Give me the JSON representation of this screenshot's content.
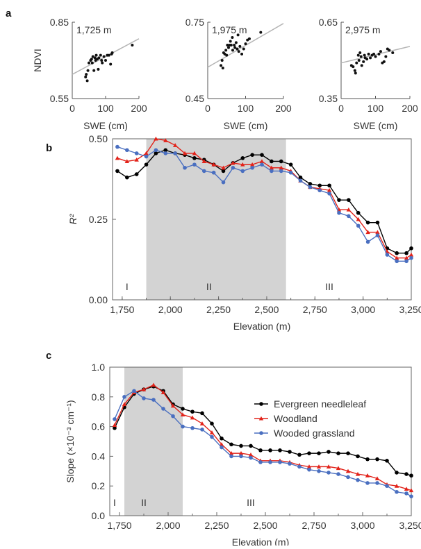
{
  "panel_labels": [
    "a",
    "b",
    "c"
  ],
  "chart_data": [
    {
      "type": "scatter",
      "annotation": "1,725 m",
      "ylabel": "NDVI",
      "xlabel": "SWE (cm)",
      "xlim": [
        0,
        200
      ],
      "ylim": [
        0.55,
        0.85
      ],
      "xticks": [
        "0",
        "100",
        "200"
      ],
      "yticks": [
        "0.55",
        "0.85"
      ],
      "grid": false,
      "points": [
        [
          40,
          0.635
        ],
        [
          42,
          0.645
        ],
        [
          45,
          0.62
        ],
        [
          47,
          0.66
        ],
        [
          50,
          0.69
        ],
        [
          55,
          0.7
        ],
        [
          58,
          0.705
        ],
        [
          60,
          0.69
        ],
        [
          62,
          0.715
        ],
        [
          65,
          0.66
        ],
        [
          68,
          0.71
        ],
        [
          70,
          0.7
        ],
        [
          72,
          0.72
        ],
        [
          75,
          0.705
        ],
        [
          78,
          0.665
        ],
        [
          80,
          0.71
        ],
        [
          85,
          0.72
        ],
        [
          88,
          0.7
        ],
        [
          90,
          0.69
        ],
        [
          95,
          0.715
        ],
        [
          100,
          0.7
        ],
        [
          105,
          0.72
        ],
        [
          110,
          0.72
        ],
        [
          115,
          0.685
        ],
        [
          118,
          0.725
        ],
        [
          120,
          0.73
        ],
        [
          180,
          0.76
        ]
      ],
      "fit": [
        [
          0,
          0.645
        ],
        [
          200,
          0.785
        ]
      ]
    },
    {
      "type": "scatter",
      "annotation": "1,975 m",
      "ylabel": "",
      "xlabel": "SWE (cm)",
      "xlim": [
        0,
        200
      ],
      "ylim": [
        0.45,
        0.75
      ],
      "xticks": [
        "0",
        "100",
        "200"
      ],
      "yticks": [
        "0.45",
        "0.75"
      ],
      "grid": false,
      "points": [
        [
          35,
          0.58
        ],
        [
          38,
          0.6
        ],
        [
          40,
          0.57
        ],
        [
          42,
          0.63
        ],
        [
          45,
          0.625
        ],
        [
          48,
          0.64
        ],
        [
          50,
          0.62
        ],
        [
          52,
          0.66
        ],
        [
          55,
          0.65
        ],
        [
          58,
          0.66
        ],
        [
          60,
          0.675
        ],
        [
          62,
          0.66
        ],
        [
          65,
          0.69
        ],
        [
          66,
          0.64
        ],
        [
          70,
          0.66
        ],
        [
          72,
          0.65
        ],
        [
          75,
          0.67
        ],
        [
          78,
          0.645
        ],
        [
          80,
          0.7
        ],
        [
          82,
          0.635
        ],
        [
          85,
          0.655
        ],
        [
          90,
          0.625
        ],
        [
          95,
          0.645
        ],
        [
          100,
          0.665
        ],
        [
          105,
          0.68
        ],
        [
          110,
          0.685
        ],
        [
          140,
          0.71
        ]
      ],
      "fit": [
        [
          0,
          0.573
        ],
        [
          200,
          0.745
        ]
      ]
    },
    {
      "type": "scatter",
      "annotation": "2,975 m",
      "ylabel": "",
      "xlabel": "SWE (cm)",
      "xlim": [
        0,
        200
      ],
      "ylim": [
        0.35,
        0.65
      ],
      "xticks": [
        "0",
        "100",
        "200"
      ],
      "yticks": [
        "0.35",
        "0.65"
      ],
      "grid": false,
      "points": [
        [
          30,
          0.48
        ],
        [
          35,
          0.475
        ],
        [
          40,
          0.46
        ],
        [
          42,
          0.45
        ],
        [
          45,
          0.49
        ],
        [
          50,
          0.52
        ],
        [
          52,
          0.5
        ],
        [
          55,
          0.53
        ],
        [
          58,
          0.515
        ],
        [
          60,
          0.48
        ],
        [
          65,
          0.495
        ],
        [
          68,
          0.52
        ],
        [
          70,
          0.51
        ],
        [
          75,
          0.505
        ],
        [
          80,
          0.525
        ],
        [
          85,
          0.51
        ],
        [
          90,
          0.52
        ],
        [
          95,
          0.525
        ],
        [
          100,
          0.515
        ],
        [
          110,
          0.525
        ],
        [
          115,
          0.535
        ],
        [
          120,
          0.49
        ],
        [
          125,
          0.495
        ],
        [
          130,
          0.515
        ],
        [
          135,
          0.545
        ],
        [
          140,
          0.54
        ],
        [
          150,
          0.53
        ]
      ],
      "fit": [
        [
          0,
          0.49
        ],
        [
          200,
          0.555
        ]
      ]
    },
    {
      "type": "line",
      "ylabel": "R²",
      "xlabel": "Elevation (m)",
      "xlim": [
        1700,
        3250
      ],
      "ylim": [
        0,
        0.5
      ],
      "xticks": [
        "1,750",
        "2,000",
        "2,250",
        "2,500",
        "2,750",
        "3,000",
        "3,250"
      ],
      "yticks": [
        "0.00",
        "0.25",
        "0.50"
      ],
      "grid": false,
      "shaded_region": [
        1875,
        2600
      ],
      "zone_labels": [
        {
          "text": "I",
          "x": 1775
        },
        {
          "text": "II",
          "x": 2200
        },
        {
          "text": "III",
          "x": 2825
        }
      ],
      "legend": "none",
      "x": [
        1725,
        1775,
        1825,
        1875,
        1925,
        1975,
        2025,
        2075,
        2125,
        2175,
        2225,
        2275,
        2325,
        2375,
        2425,
        2475,
        2525,
        2575,
        2625,
        2675,
        2725,
        2775,
        2825,
        2875,
        2925,
        2975,
        3025,
        3075,
        3125,
        3175,
        3225,
        3250
      ],
      "series": [
        {
          "color": "#000000",
          "marker": "circle",
          "values": [
            0.4,
            0.38,
            0.39,
            0.42,
            0.455,
            0.465,
            0.455,
            0.45,
            0.44,
            0.435,
            0.42,
            0.4,
            0.425,
            0.44,
            0.45,
            0.45,
            0.43,
            0.43,
            0.42,
            0.38,
            0.36,
            0.355,
            0.355,
            0.31,
            0.31,
            0.27,
            0.24,
            0.24,
            0.16,
            0.145,
            0.145,
            0.16
          ]
        },
        {
          "color": "#e2231a",
          "marker": "triangle",
          "values": [
            0.44,
            0.43,
            0.435,
            0.455,
            0.5,
            0.495,
            0.48,
            0.455,
            0.455,
            0.43,
            0.42,
            0.41,
            0.425,
            0.42,
            0.42,
            0.43,
            0.41,
            0.41,
            0.4,
            0.37,
            0.35,
            0.345,
            0.34,
            0.28,
            0.28,
            0.25,
            0.21,
            0.21,
            0.15,
            0.13,
            0.13,
            0.14
          ]
        },
        {
          "color": "#4a6fc0",
          "marker": "circle",
          "values": [
            0.475,
            0.465,
            0.455,
            0.445,
            0.465,
            0.455,
            0.455,
            0.41,
            0.42,
            0.4,
            0.395,
            0.365,
            0.41,
            0.4,
            0.41,
            0.42,
            0.4,
            0.4,
            0.395,
            0.37,
            0.35,
            0.34,
            0.33,
            0.27,
            0.26,
            0.23,
            0.18,
            0.2,
            0.14,
            0.12,
            0.12,
            0.13
          ]
        }
      ]
    },
    {
      "type": "line",
      "ylabel": "Slope (×10⁻³ cm⁻¹)",
      "xlabel": "Elevation (m)",
      "xlim": [
        1700,
        3250
      ],
      "ylim": [
        0,
        1.0
      ],
      "xticks": [
        "1,750",
        "2,000",
        "2,250",
        "2,500",
        "2,750",
        "3,000",
        "3,250"
      ],
      "yticks": [
        "0.0",
        "0.2",
        "0.4",
        "0.6",
        "0.8",
        "1.0"
      ],
      "grid": false,
      "shaded_region": [
        1775,
        2075
      ],
      "zone_labels": [
        {
          "text": "I",
          "x": 1725
        },
        {
          "text": "II",
          "x": 1875
        },
        {
          "text": "III",
          "x": 2425
        }
      ],
      "legend": "top-right",
      "x": [
        1725,
        1775,
        1825,
        1875,
        1925,
        1975,
        2025,
        2075,
        2125,
        2175,
        2225,
        2275,
        2325,
        2375,
        2425,
        2475,
        2525,
        2575,
        2625,
        2675,
        2725,
        2775,
        2825,
        2875,
        2925,
        2975,
        3025,
        3075,
        3125,
        3175,
        3225,
        3250
      ],
      "series": [
        {
          "name": "Evergreen needleleaf",
          "color": "#000000",
          "marker": "circle",
          "values": [
            0.59,
            0.73,
            0.82,
            0.85,
            0.87,
            0.84,
            0.75,
            0.72,
            0.7,
            0.69,
            0.62,
            0.52,
            0.48,
            0.47,
            0.47,
            0.44,
            0.44,
            0.44,
            0.43,
            0.41,
            0.42,
            0.42,
            0.43,
            0.42,
            0.42,
            0.4,
            0.38,
            0.38,
            0.37,
            0.29,
            0.28,
            0.27
          ]
        },
        {
          "name": "Woodland",
          "color": "#e2231a",
          "marker": "triangle",
          "values": [
            0.61,
            0.75,
            0.83,
            0.85,
            0.88,
            0.83,
            0.74,
            0.68,
            0.66,
            0.62,
            0.56,
            0.48,
            0.42,
            0.42,
            0.41,
            0.37,
            0.37,
            0.37,
            0.36,
            0.34,
            0.33,
            0.33,
            0.33,
            0.32,
            0.3,
            0.28,
            0.27,
            0.25,
            0.21,
            0.2,
            0.18,
            0.17
          ]
        },
        {
          "name": "Wooded grassland",
          "color": "#4a6fc0",
          "marker": "circle",
          "values": [
            0.65,
            0.8,
            0.84,
            0.79,
            0.78,
            0.72,
            0.67,
            0.6,
            0.59,
            0.58,
            0.53,
            0.46,
            0.4,
            0.4,
            0.39,
            0.36,
            0.36,
            0.36,
            0.35,
            0.33,
            0.31,
            0.3,
            0.29,
            0.28,
            0.26,
            0.24,
            0.22,
            0.22,
            0.2,
            0.16,
            0.15,
            0.13
          ]
        }
      ]
    }
  ]
}
